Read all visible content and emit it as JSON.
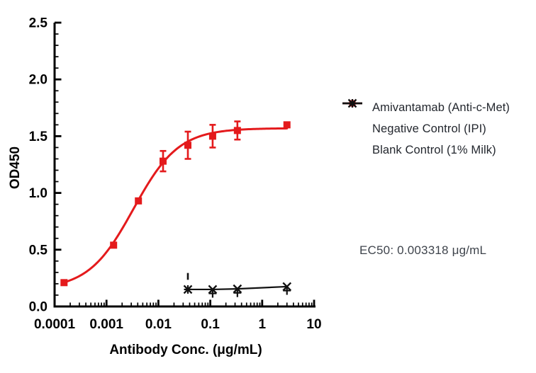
{
  "chart_data": {
    "type": "scatter",
    "title": "",
    "xlabel": "Antibody Conc. (μg/mL)",
    "ylabel": "OD450",
    "x_scale": "log10",
    "xlim": [
      0.0001,
      10
    ],
    "ylim": [
      0,
      2.5
    ],
    "grid": false,
    "legend_position": "right-outside",
    "x_ticks": {
      "major": [
        0.0001,
        0.001,
        0.01,
        0.1,
        1,
        10
      ],
      "labels": [
        "0.0001",
        "0.001",
        "0.01",
        "0.1",
        "1",
        "10"
      ],
      "minor_mantissas": [
        2,
        3,
        4,
        5,
        6,
        7,
        8,
        9
      ]
    },
    "y_ticks": {
      "major": [
        0,
        0.5,
        1.0,
        1.5,
        2.0,
        2.5
      ],
      "labels": [
        "0.0",
        "0.5",
        "1.0",
        "1.5",
        "2.0",
        "2.5"
      ],
      "minor_step": 0.1
    },
    "series": [
      {
        "name": "Amivantamab (Anti-c-Met)",
        "color": "#e41a1c",
        "marker": "square",
        "line": "4pl-fit",
        "x": [
          0.000152,
          0.00137,
          0.00412,
          0.0123,
          0.037,
          0.111,
          0.333,
          3
        ],
        "y": [
          0.21,
          0.54,
          0.93,
          1.28,
          1.42,
          1.5,
          1.55,
          1.6
        ],
        "yerr": [
          0,
          0,
          0,
          0.09,
          0.12,
          0.1,
          0.08,
          0
        ],
        "fit": {
          "type": "4PL",
          "bottom": 0.15,
          "top": 1.57,
          "ec50": 0.003318,
          "hill": 1.0
        }
      },
      {
        "name": "Negative Control (IPI)",
        "color": "#111111",
        "marker": "x",
        "line": "straight",
        "x": [
          0.037,
          0.111,
          0.333,
          3
        ],
        "y": [
          0.15,
          0.15,
          0.155,
          0.175
        ],
        "yerr": [
          0,
          0,
          0,
          0
        ]
      },
      {
        "name": "Blank Control (1% Milk)",
        "color": "#111111",
        "marker": "plus",
        "line": "none",
        "x": [
          0.037,
          0.111,
          0.333,
          3
        ],
        "y": [
          0.15,
          0.115,
          0.12,
          0.14
        ],
        "yerr": [
          0,
          0,
          0,
          0
        ],
        "extra_tick": {
          "x": 0.037,
          "y_from": 0.235,
          "y_to": 0.295
        }
      }
    ],
    "annotation": "EC50: 0.003318 μg/mL"
  }
}
